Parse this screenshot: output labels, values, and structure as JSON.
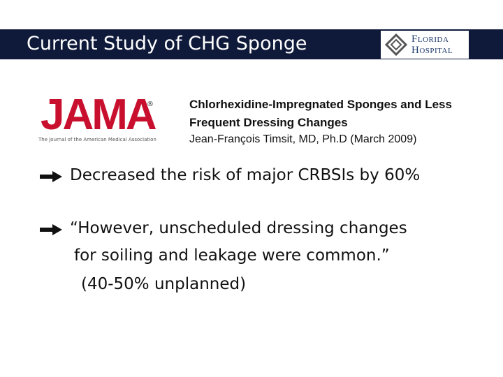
{
  "header": {
    "title": "Current Study of CHG Sponge",
    "logo": {
      "line1": "Florida",
      "line2": "Hospital"
    }
  },
  "jama_logo": {
    "name": "JAMA",
    "mark": "®",
    "tagline": "The Journal of the American Medical Association"
  },
  "article": {
    "title_lines": [
      "Chlorhexidine-Impregnated Sponges and Less",
      "Frequent Dressing Changes"
    ],
    "author": "Jean-François Timsit, MD, Ph.D (March 2009)"
  },
  "bullets": [
    {
      "lines": [
        "Decreased the risk of major CRBSIs by 60%"
      ]
    },
    {
      "lines": [
        "“However, unscheduled dressing changes",
        "for soiling and leakage were common.”",
        "(40-50% unplanned)"
      ]
    }
  ]
}
